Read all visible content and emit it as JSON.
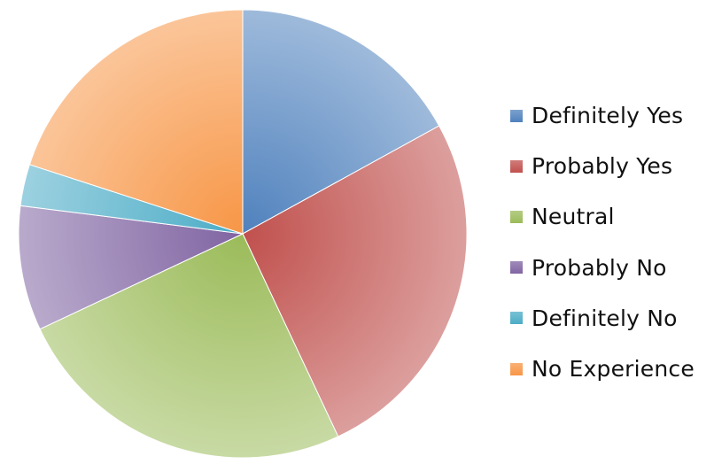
{
  "chart_data": {
    "type": "pie",
    "categories": [
      "Definitely Yes",
      "Probably Yes",
      "Neutral",
      "Probably No",
      "Definitely No",
      "No Experience"
    ],
    "values": [
      17,
      26,
      25,
      9,
      3,
      20
    ],
    "colors": [
      "#4f81bd",
      "#c0504d",
      "#9bbb59",
      "#8064a2",
      "#4bacc6",
      "#f79646"
    ],
    "legend_position": "right",
    "start": "top, clockwise"
  }
}
